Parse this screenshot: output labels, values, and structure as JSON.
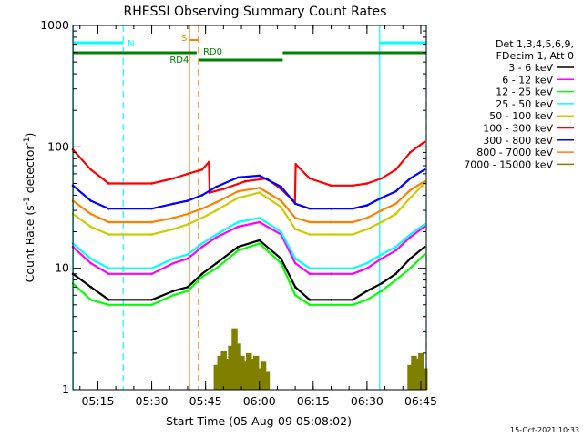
{
  "chart_data": {
    "type": "line",
    "title": "RHESSI Observing Summary Count Rates",
    "xlabel": "Start Time (05-Aug-09 05:08:02)",
    "ylabel_main": "Count Rate (s",
    "ylabel_sup1": "-1",
    "ylabel_mid": " detector",
    "ylabel_sup2": "-1",
    "ylabel_end": ")",
    "yscale": "log",
    "ylim": [
      1,
      1000
    ],
    "xlim_minutes": [
      0,
      98.5
    ],
    "y_ticks": [
      {
        "value": 1,
        "label": "1"
      },
      {
        "value": 10,
        "label": "10"
      },
      {
        "value": 100,
        "label": "100"
      },
      {
        "value": 1000,
        "label": "1000"
      }
    ],
    "x_ticks": [
      {
        "t": 6.97,
        "label": "05:15"
      },
      {
        "t": 21.97,
        "label": "05:30"
      },
      {
        "t": 36.97,
        "label": "05:45"
      },
      {
        "t": 51.97,
        "label": "06:00"
      },
      {
        "t": 66.97,
        "label": "06:15"
      },
      {
        "t": 81.97,
        "label": "06:30"
      },
      {
        "t": 96.97,
        "label": "06:45"
      }
    ],
    "legend_header": [
      "Det 1,3,4,5,6,9,",
      "FDecim 1, Att 0"
    ],
    "legend_placement": "right",
    "series": [
      {
        "name": "3 - 6 keV",
        "color": "#000000",
        "x": [
          0,
          5,
          10,
          22,
          28,
          32,
          36,
          40,
          46,
          52,
          58,
          62,
          66,
          72,
          78,
          82,
          86,
          90,
          94,
          98
        ],
        "values": [
          9,
          7,
          5.5,
          5.5,
          6.5,
          7,
          9,
          11,
          15,
          17,
          12,
          7,
          5.5,
          5.5,
          5.5,
          6.5,
          7.5,
          9,
          12,
          15
        ]
      },
      {
        "name": "6 - 12 keV",
        "color": "#ff00ff",
        "x": [
          0,
          5,
          10,
          22,
          28,
          32,
          36,
          40,
          46,
          52,
          58,
          62,
          66,
          72,
          78,
          82,
          86,
          90,
          94,
          98
        ],
        "values": [
          15,
          11,
          9,
          9,
          11,
          12,
          15,
          18,
          22,
          24,
          19,
          11,
          9,
          9,
          9,
          10,
          12,
          14,
          18,
          22
        ]
      },
      {
        "name": "12 - 25 keV",
        "color": "#00ff00",
        "x": [
          0,
          5,
          10,
          22,
          28,
          32,
          36,
          40,
          46,
          52,
          58,
          62,
          66,
          72,
          78,
          82,
          86,
          90,
          94,
          98
        ],
        "values": [
          7.5,
          5.5,
          5,
          5,
          6,
          6.5,
          8.5,
          10,
          14,
          16,
          11,
          6,
          5,
          5,
          5,
          5.5,
          6.5,
          8,
          10,
          13
        ]
      },
      {
        "name": "25 - 50 keV",
        "color": "#00ffff",
        "x": [
          0,
          5,
          10,
          22,
          28,
          32,
          36,
          40,
          46,
          52,
          58,
          62,
          66,
          72,
          78,
          82,
          86,
          90,
          94,
          98
        ],
        "values": [
          16,
          12,
          10,
          10,
          12,
          13,
          16,
          19,
          24,
          26,
          20,
          12,
          10,
          10,
          10,
          11,
          13,
          15,
          19,
          23
        ]
      },
      {
        "name": "50 - 100 keV",
        "color": "#cccc00",
        "x": [
          0,
          5,
          10,
          22,
          28,
          32,
          36,
          40,
          46,
          52,
          58,
          62,
          66,
          72,
          78,
          82,
          86,
          90,
          94,
          98
        ],
        "values": [
          28,
          22,
          19,
          19,
          21,
          23,
          26,
          30,
          38,
          42,
          32,
          21,
          19,
          19,
          19,
          21,
          24,
          28,
          38,
          50
        ]
      },
      {
        "name": "100 - 300 keV",
        "color": "#ff0000",
        "x": [
          0,
          5,
          10,
          22,
          28,
          32,
          36,
          37.9,
          38.1,
          42,
          48,
          54,
          58,
          61.9,
          62.1,
          66,
          72,
          78,
          82,
          86,
          90,
          94,
          98
        ],
        "values": [
          95,
          65,
          50,
          50,
          55,
          60,
          65,
          75,
          42,
          45,
          52,
          55,
          45,
          35,
          72,
          55,
          48,
          48,
          50,
          55,
          65,
          90,
          110
        ]
      },
      {
        "name": "300 - 800 keV",
        "color": "#0000ff",
        "x": [
          0,
          5,
          10,
          22,
          28,
          32,
          36,
          40,
          46,
          52,
          58,
          62,
          66,
          72,
          78,
          82,
          86,
          90,
          94,
          98
        ],
        "values": [
          48,
          36,
          31,
          31,
          34,
          36,
          40,
          47,
          56,
          58,
          47,
          34,
          31,
          31,
          31,
          33,
          38,
          43,
          55,
          65
        ]
      },
      {
        "name": "800 - 7000 keV",
        "color": "#ff8000",
        "x": [
          0,
          5,
          10,
          22,
          28,
          32,
          36,
          40,
          46,
          52,
          58,
          62,
          66,
          72,
          78,
          82,
          86,
          90,
          94,
          98
        ],
        "values": [
          36,
          28,
          24,
          24,
          26,
          28,
          31,
          35,
          43,
          46,
          36,
          26,
          24,
          24,
          24,
          26,
          30,
          34,
          44,
          52
        ]
      },
      {
        "name": "7000 - 15000 keV",
        "color": "#808000",
        "x": [
          40,
          41,
          42,
          43,
          44,
          45,
          46,
          47,
          48,
          49,
          50,
          51,
          52,
          53,
          54,
          94,
          95,
          96,
          97,
          98
        ],
        "values": [
          1.6,
          1.9,
          2.1,
          1.8,
          2.3,
          3.2,
          2.4,
          1.9,
          1.7,
          2.0,
          1.8,
          1.9,
          1.5,
          1.7,
          1.4,
          1.6,
          1.9,
          1.8,
          2.0,
          1.5
        ]
      }
    ],
    "flags": {
      "night_intervals": [
        [
          0,
          14
        ],
        [
          85.5,
          98.5
        ]
      ],
      "night_label": "N",
      "saa_interval": [
        32.5,
        35.0
      ],
      "saa_label": "S",
      "rd_bars": [
        [
          0,
          34.5
        ],
        [
          35.3,
          58.5
        ],
        [
          58.5,
          98.5
        ]
      ],
      "rd_labels": [
        {
          "text": "RD4",
          "t": 27.0
        },
        {
          "text": "RD0",
          "t": 36.3
        }
      ],
      "vertical_lines": [
        {
          "t": 0.1,
          "color": "#00ffff",
          "dash": false
        },
        {
          "t": 14.0,
          "color": "#00ffff",
          "dash": true
        },
        {
          "t": 32.5,
          "color": "#ff8000",
          "dash": false
        },
        {
          "t": 35.0,
          "color": "#ff8000",
          "dash": true
        },
        {
          "t": 85.5,
          "color": "#00ffff",
          "dash": false
        },
        {
          "t": 98.5,
          "color": "#00ffff",
          "dash": true
        }
      ],
      "colors": {
        "night": "#00ffff",
        "saa": "#ff8000",
        "rd": "#008000"
      }
    },
    "footer_date": "15-Oct-2021 10:33"
  }
}
